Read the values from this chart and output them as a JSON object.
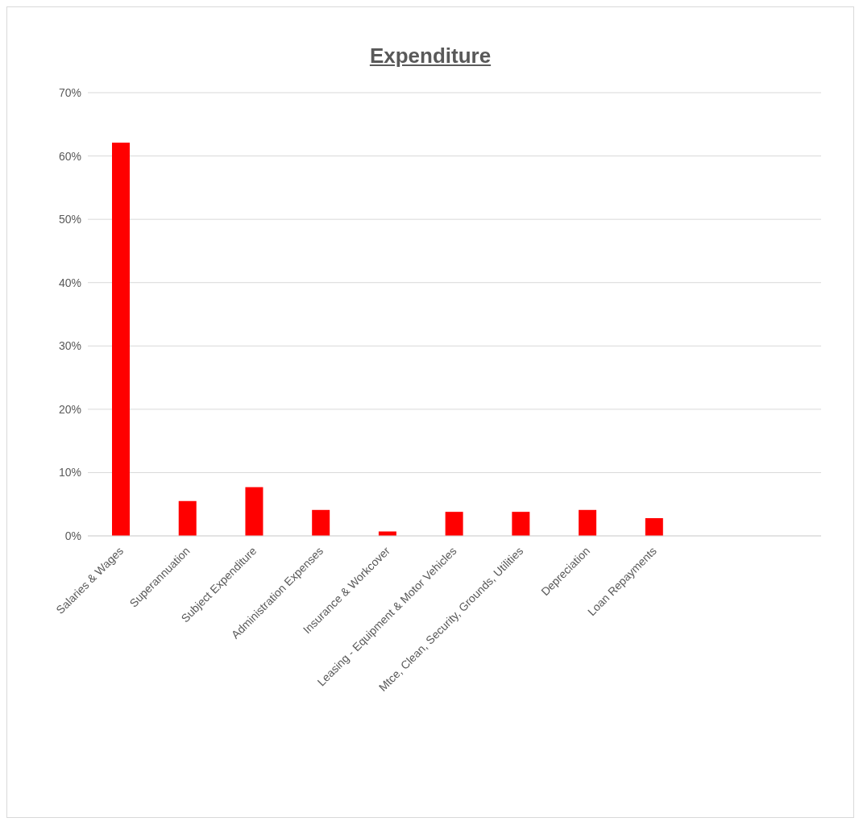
{
  "chart_data": {
    "type": "bar",
    "title": "Expenditure",
    "categories": [
      "Salaries & Wages",
      "Superannuation",
      "Subject Expenditure",
      "Administration Expenses",
      "Insurance & Workcover",
      "Leasing - Equipment & Motor Vehicles",
      "Mtce, Clean, Security, Grounds, Utilities",
      "Depreciation",
      "Loan Repayments",
      null,
      null
    ],
    "values": [
      62.1,
      5.5,
      7.7,
      4.1,
      0.7,
      3.8,
      3.8,
      4.1,
      2.8,
      null,
      null
    ],
    "color": "#ff0000",
    "ylim": [
      0,
      70
    ],
    "yticks": [
      {
        "value": 0,
        "label": "0%"
      },
      {
        "value": 10,
        "label": "10%"
      },
      {
        "value": 20,
        "label": "20%"
      },
      {
        "value": 30,
        "label": "30%"
      },
      {
        "value": 40,
        "label": "40%"
      },
      {
        "value": 50,
        "label": "50%"
      },
      {
        "value": 60,
        "label": "60%"
      },
      {
        "value": 70,
        "label": "70%"
      }
    ],
    "grid": "y"
  }
}
